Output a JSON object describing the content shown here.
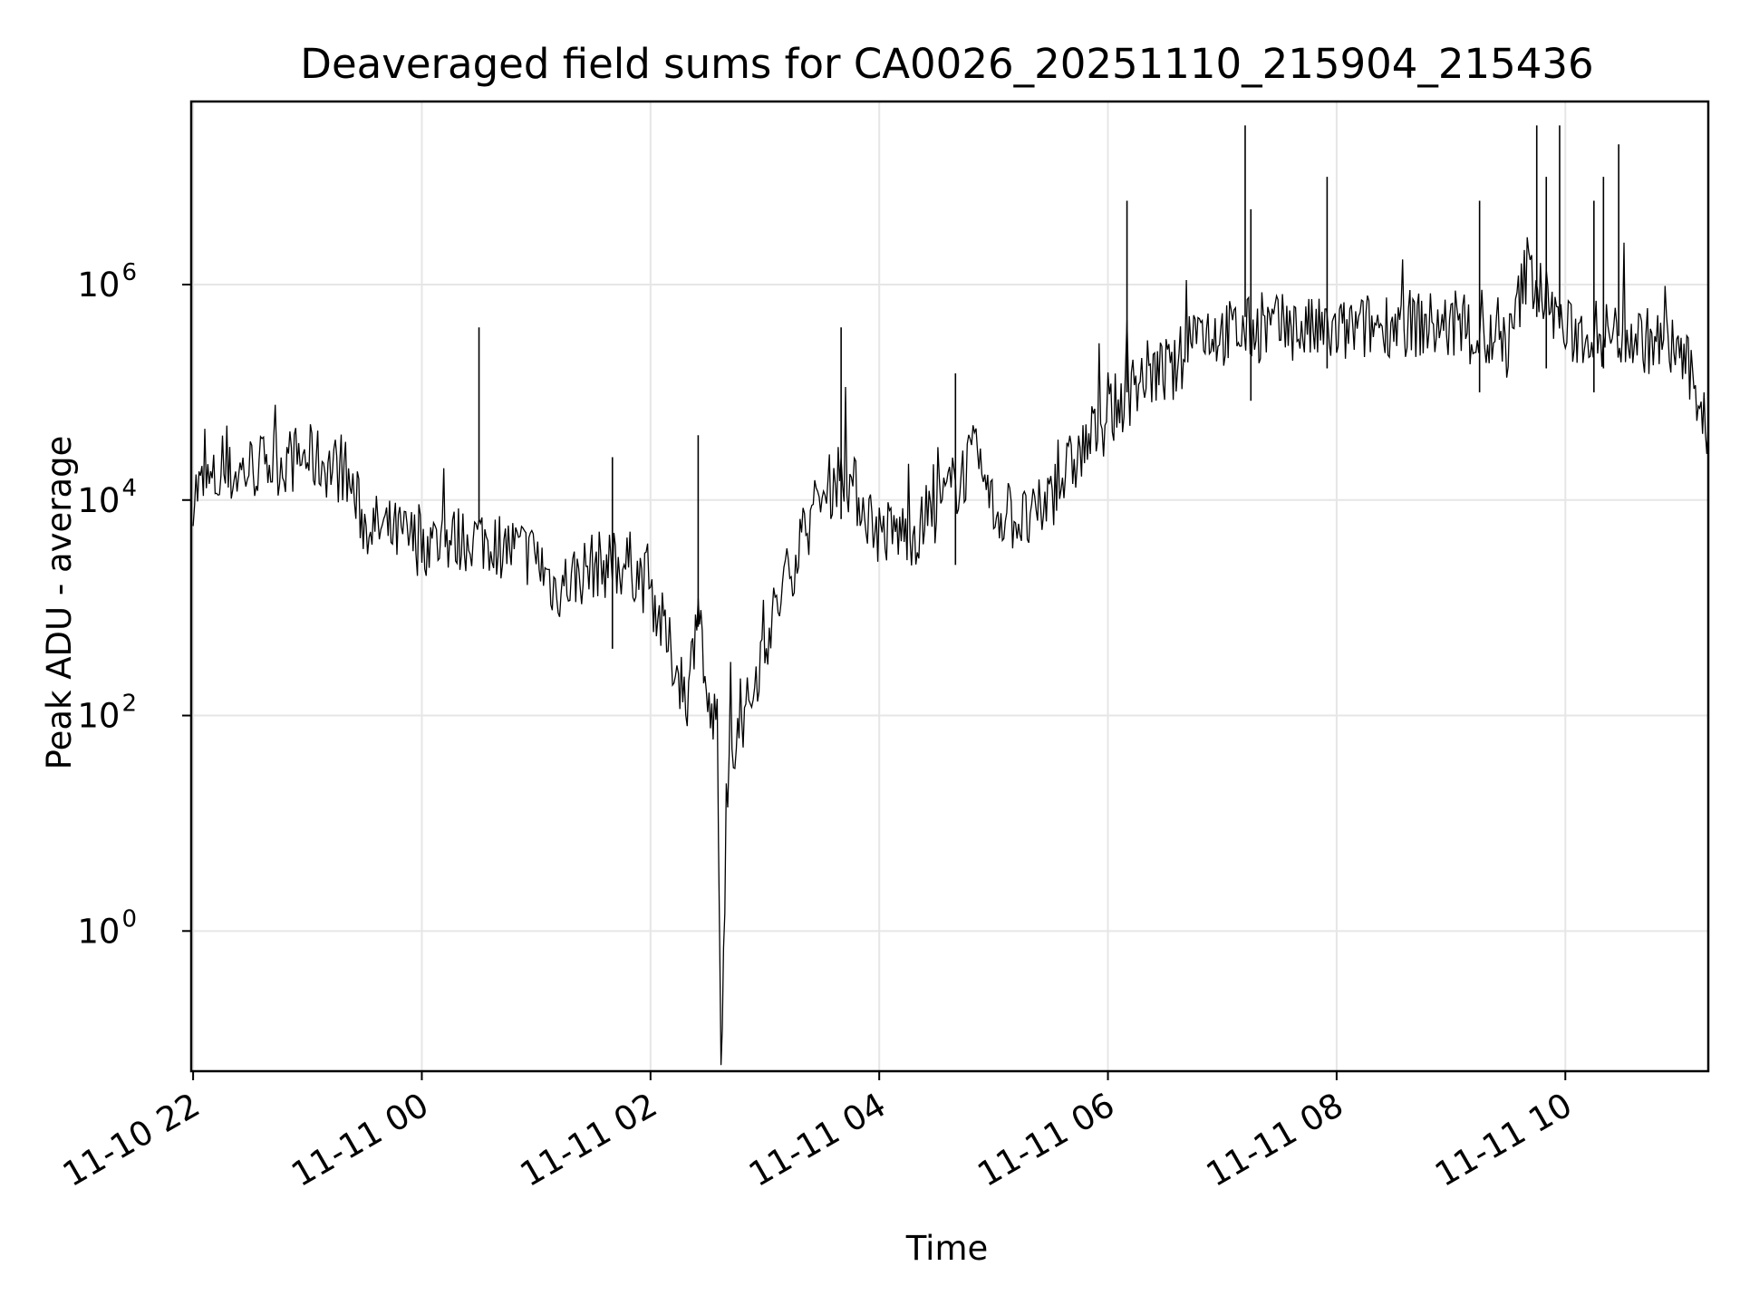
{
  "chart_data": {
    "type": "line",
    "title": "Deaveraged field sums for CA0026_20251110_215904_215436",
    "xlabel": "Time",
    "ylabel": "Peak ADU - average",
    "yscale": "log",
    "ylim": [
      0.05,
      50000000
    ],
    "xlim": [
      "2025-11-10 21:59",
      "2025-11-11 11:15"
    ],
    "grid": true,
    "line_color": "#000000",
    "x_tick_labels": [
      "11-10 22",
      "11-11 00",
      "11-11 02",
      "11-11 04",
      "11-11 06",
      "11-11 08",
      "11-11 10"
    ],
    "y_tick_labels": [
      {
        "base": "10",
        "exp": "0"
      },
      {
        "base": "10",
        "exp": "2"
      },
      {
        "base": "10",
        "exp": "4"
      },
      {
        "base": "10",
        "exp": "6"
      }
    ],
    "series": [
      {
        "x": [
          "2025-11-10 22:00",
          "2025-11-10 22:30",
          "2025-11-10 23:00",
          "2025-11-10 23:20",
          "2025-11-10 23:30",
          "2025-11-11 00:00",
          "2025-11-11 00:30",
          "2025-11-11 01:00",
          "2025-11-11 01:10",
          "2025-11-11 01:30",
          "2025-11-11 01:50",
          "2025-11-11 02:00",
          "2025-11-11 02:10",
          "2025-11-11 02:20",
          "2025-11-11 02:25",
          "2025-11-11 02:30",
          "2025-11-11 02:35",
          "2025-11-11 02:37",
          "2025-11-11 02:39",
          "2025-11-11 02:42",
          "2025-11-11 02:45",
          "2025-11-11 02:50",
          "2025-11-11 03:00",
          "2025-11-11 03:10",
          "2025-11-11 03:20",
          "2025-11-11 03:40",
          "2025-11-11 04:00",
          "2025-11-11 04:20",
          "2025-11-11 04:30",
          "2025-11-11 04:50",
          "2025-11-11 05:00",
          "2025-11-11 05:20",
          "2025-11-11 05:40",
          "2025-11-11 06:00",
          "2025-11-11 06:20",
          "2025-11-11 06:35",
          "2025-11-11 06:45",
          "2025-11-11 07:00",
          "2025-11-11 07:30",
          "2025-11-11 08:00",
          "2025-11-11 08:30",
          "2025-11-11 09:00",
          "2025-11-11 09:30",
          "2025-11-11 09:40",
          "2025-11-11 10:00",
          "2025-11-11 10:30",
          "2025-11-11 11:00",
          "2025-11-11 11:15"
        ],
        "y": [
          12000,
          20000,
          25000,
          18000,
          6000,
          4000,
          4500,
          3000,
          1500,
          2500,
          2500,
          1500,
          400,
          150,
          1500,
          100,
          80,
          0.05,
          2,
          60,
          60,
          100,
          500,
          1500,
          5000,
          20000,
          5000,
          5000,
          8000,
          25000,
          8000,
          6000,
          20000,
          60000,
          150000,
          150000,
          400000,
          350000,
          400000,
          350000,
          450000,
          400000,
          250000,
          1500000,
          350000,
          350000,
          250000,
          50000
        ]
      }
    ],
    "spikes": [
      {
        "x": "2025-11-11 00:30",
        "y": 400000
      },
      {
        "x": "2025-11-11 01:40",
        "y": 25000
      },
      {
        "x": "2025-11-11 02:25",
        "y": 40000
      },
      {
        "x": "2025-11-11 03:40",
        "y": 400000
      },
      {
        "x": "2025-11-11 04:40",
        "y": 150000
      },
      {
        "x": "2025-11-11 06:10",
        "y": 6000000
      },
      {
        "x": "2025-11-11 07:12",
        "y": 30000000
      },
      {
        "x": "2025-11-11 07:15",
        "y": 5000000
      },
      {
        "x": "2025-11-11 07:55",
        "y": 10000000
      },
      {
        "x": "2025-11-11 09:15",
        "y": 6000000
      },
      {
        "x": "2025-11-11 09:45",
        "y": 30000000
      },
      {
        "x": "2025-11-11 09:50",
        "y": 10000000
      },
      {
        "x": "2025-11-11 09:57",
        "y": 30000000
      },
      {
        "x": "2025-11-11 10:15",
        "y": 6000000
      },
      {
        "x": "2025-11-11 10:20",
        "y": 10000000
      },
      {
        "x": "2025-11-11 10:28",
        "y": 20000000
      }
    ]
  }
}
